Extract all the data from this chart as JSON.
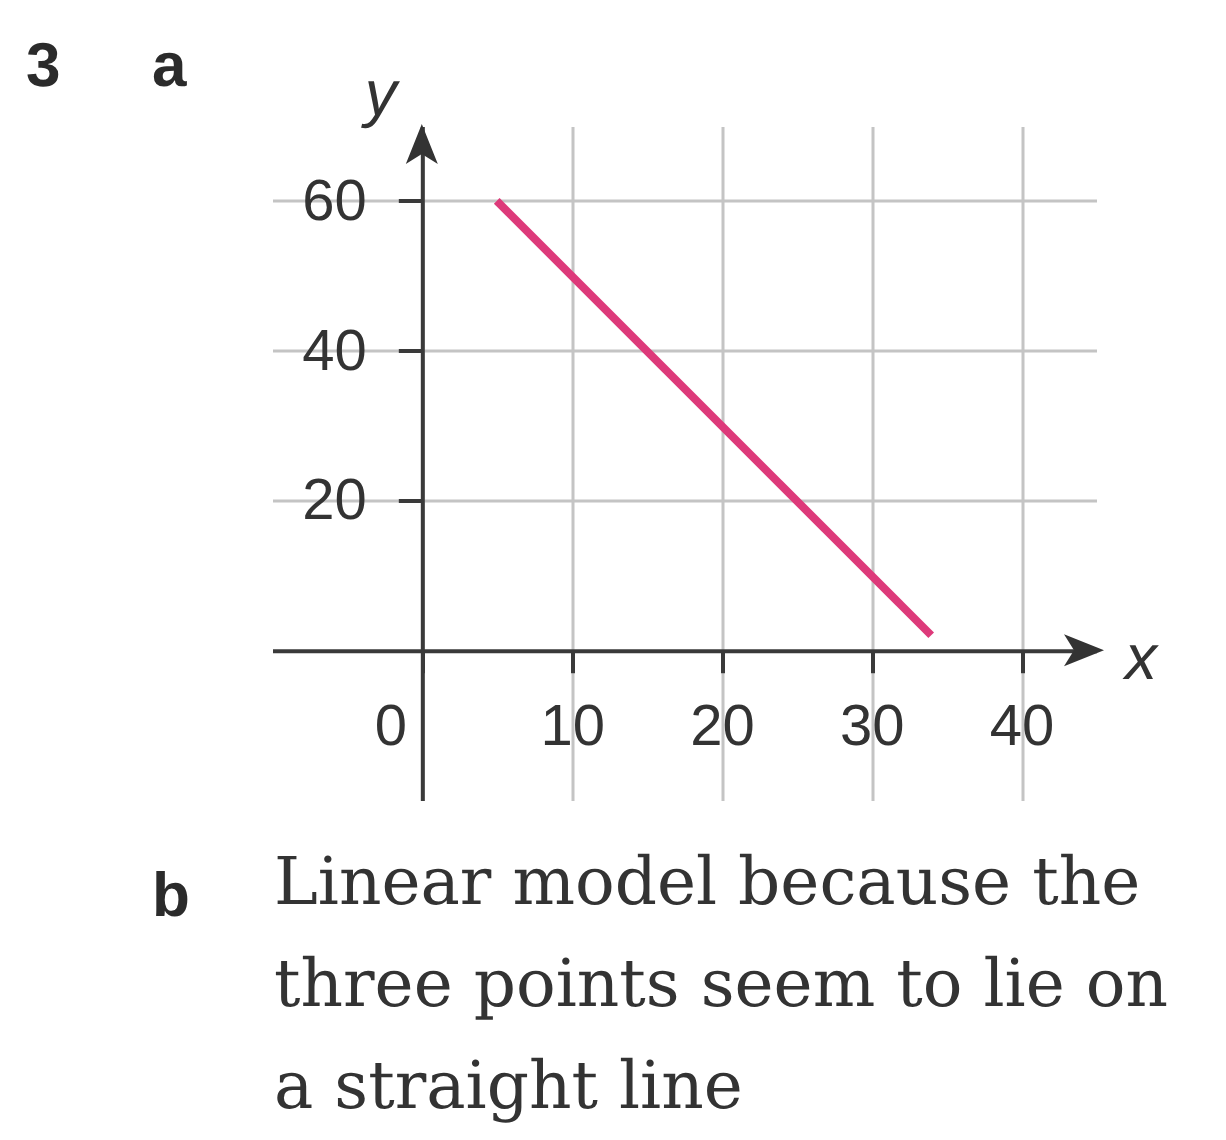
{
  "chart_data": {
    "type": "line",
    "xlabel": "x",
    "ylabel": "y",
    "x": [
      5,
      34
    ],
    "series": [
      {
        "color": "#dd3a7a",
        "values": [
          60,
          2
        ]
      }
    ],
    "xlim": [
      -10,
      45
    ],
    "ylim": [
      -20,
      70
    ],
    "xticks": [
      0,
      10,
      20,
      30,
      40
    ],
    "yticks": [
      20,
      40,
      60
    ],
    "grid": true,
    "annotations": [
      "3",
      "a",
      "b",
      "Linear model because the three points seem to lie on a straight line"
    ]
  }
}
